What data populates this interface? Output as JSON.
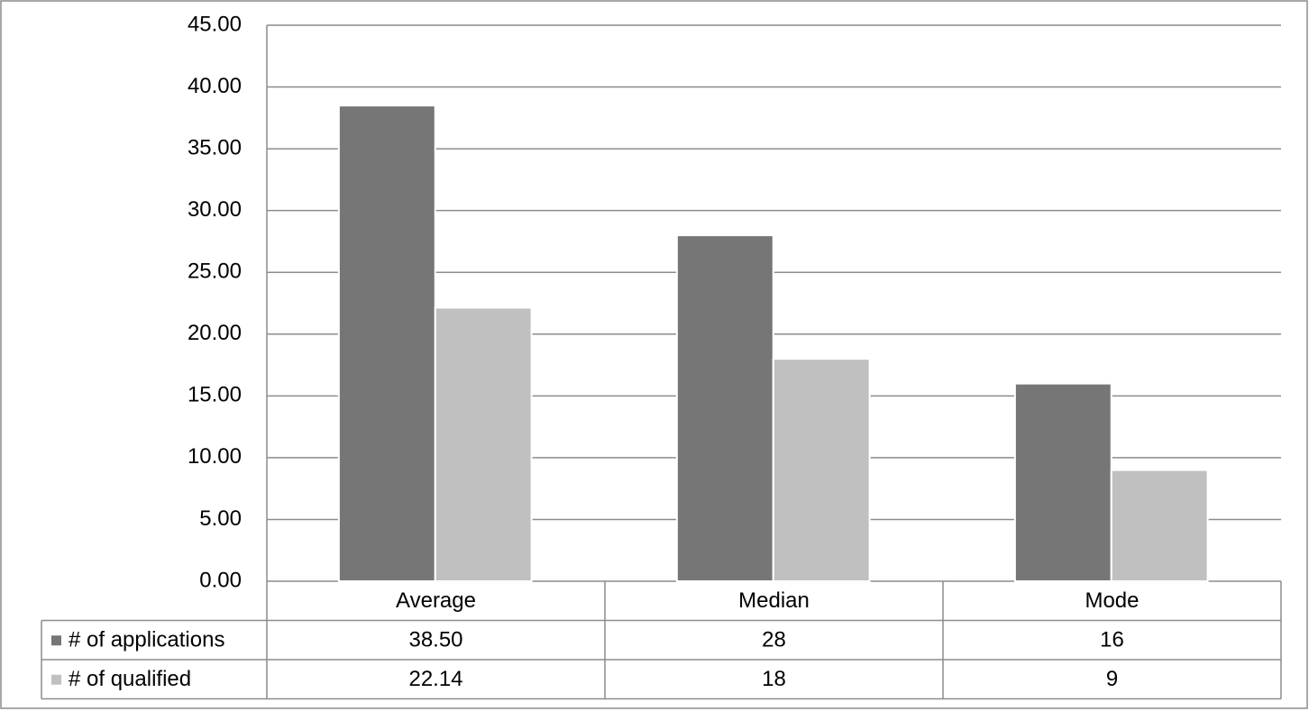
{
  "chart_data": {
    "type": "bar",
    "categories": [
      "Average",
      "Median",
      "Mode"
    ],
    "series": [
      {
        "name": "# of applications",
        "color": "#767676",
        "values": [
          38.5,
          28,
          16
        ],
        "value_labels": [
          "38.50",
          "28",
          "16"
        ]
      },
      {
        "name": "# of qualified",
        "color": "#c0c0c0",
        "values": [
          22.14,
          18,
          9
        ]
      }
    ],
    "ylim": [
      0,
      45
    ],
    "yticks": [
      {
        "value": 0,
        "label": "0.00"
      },
      {
        "value": 5,
        "label": "5.00"
      },
      {
        "value": 10,
        "label": "10.00"
      },
      {
        "value": 15,
        "label": "15.00"
      },
      {
        "value": 20,
        "label": "20.00"
      },
      {
        "value": 25,
        "label": "25.00"
      },
      {
        "value": 30,
        "label": "30.00"
      },
      {
        "value": 35,
        "label": "35.00"
      },
      {
        "value": 40,
        "label": "40.00"
      },
      {
        "value": 45,
        "label": "45.00"
      }
    ],
    "grid": true
  }
}
